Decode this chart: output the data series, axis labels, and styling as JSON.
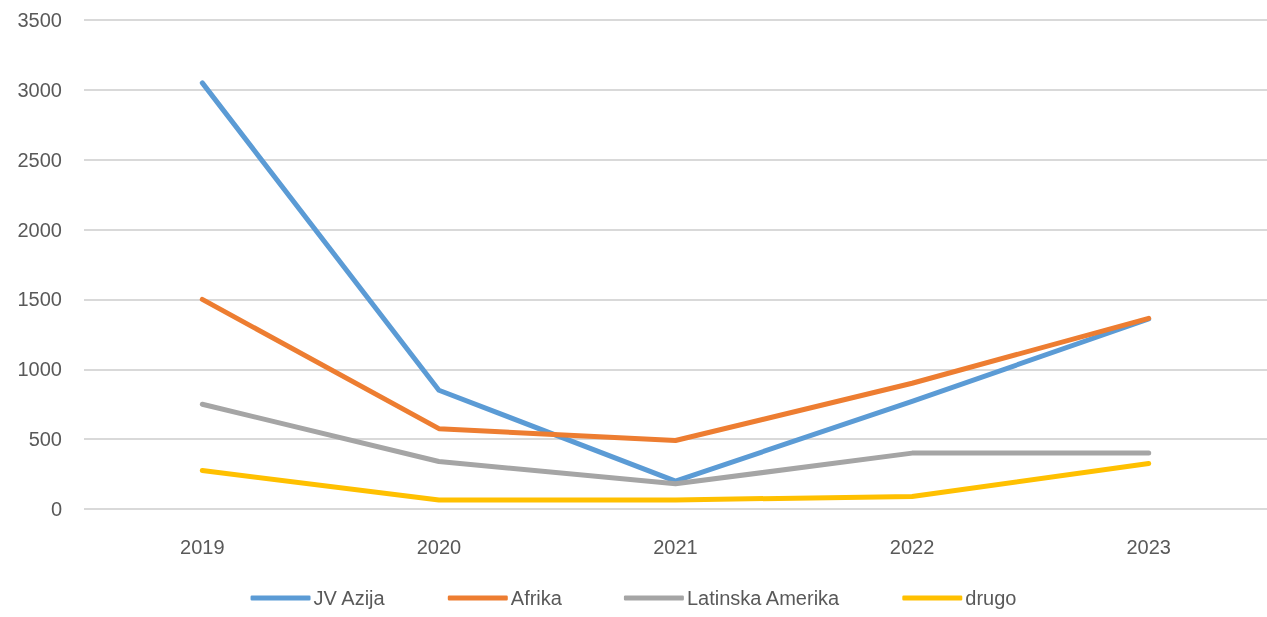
{
  "chart_data": {
    "type": "line",
    "categories": [
      "2019",
      "2020",
      "2021",
      "2022",
      "2023"
    ],
    "series": [
      {
        "name": "JV Azija",
        "color": "#5b9bd5",
        "values": [
          3050,
          850,
          200,
          770,
          1360
        ]
      },
      {
        "name": "Afrika",
        "color": "#ed7d31",
        "values": [
          1500,
          575,
          490,
          900,
          1365
        ]
      },
      {
        "name": "Latinska Amerika",
        "color": "#a5a5a5",
        "values": [
          750,
          340,
          180,
          400,
          400
        ]
      },
      {
        "name": "drugo",
        "color": "#ffc000",
        "values": [
          275,
          65,
          65,
          90,
          325
        ]
      }
    ],
    "ylim": [
      0,
      3500
    ],
    "yticks": [
      0,
      500,
      1000,
      1500,
      2000,
      2500,
      3000,
      3500
    ],
    "grid": "y",
    "legend": "bottom",
    "marker": "none",
    "line_style": "solid"
  }
}
